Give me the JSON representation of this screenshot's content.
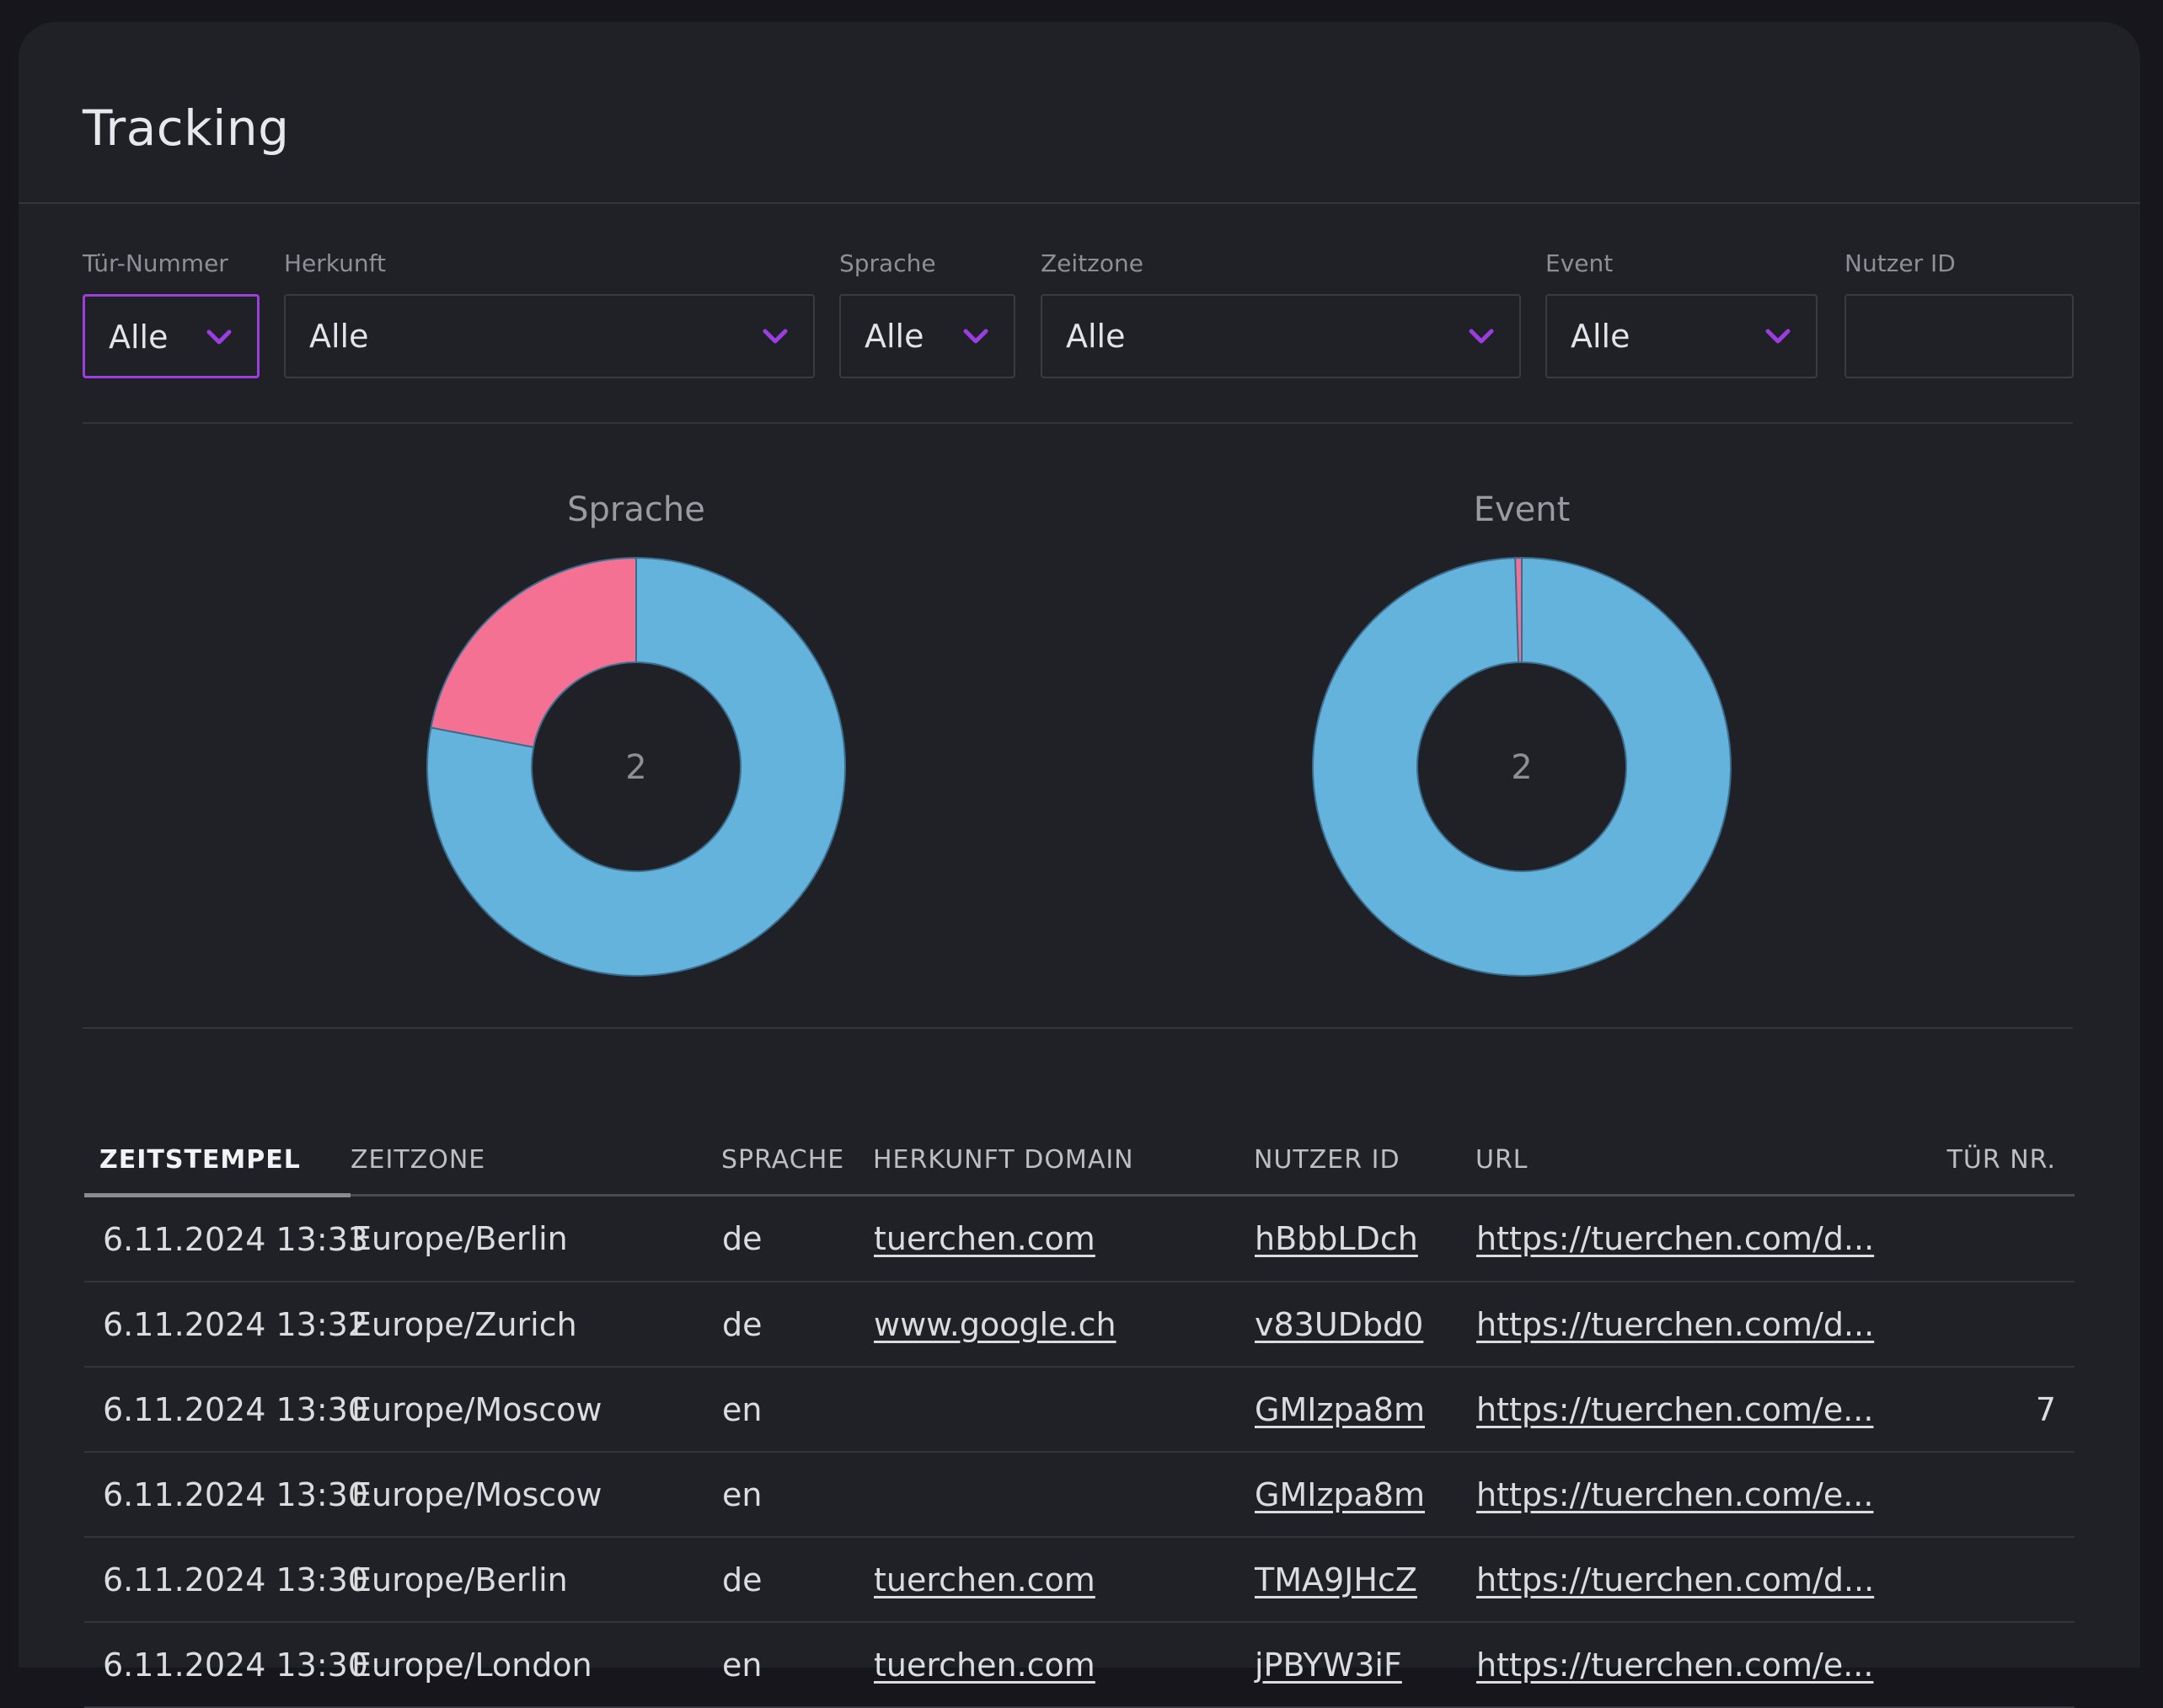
{
  "page": {
    "title": "Tracking"
  },
  "filters": [
    {
      "label": "Tür-Nummer",
      "value": "Alle"
    },
    {
      "label": "Herkunft",
      "value": "Alle"
    },
    {
      "label": "Sprache",
      "value": "Alle"
    },
    {
      "label": "Zeitzone",
      "value": "Alle"
    },
    {
      "label": "Event",
      "value": "Alle"
    },
    {
      "label": "Nutzer ID",
      "value": ""
    }
  ],
  "colors": {
    "accent": "#9a3ee0",
    "pie_blue": "#63b3dc",
    "pie_pink": "#f47194"
  },
  "chart_data": [
    {
      "type": "pie",
      "title": "Sprache",
      "center_label": "2",
      "values": [
        78,
        22
      ],
      "colors": [
        "#63b3dc",
        "#f47194"
      ]
    },
    {
      "type": "pie",
      "title": "Event",
      "center_label": "2",
      "values": [
        99.5,
        0.5
      ],
      "colors": [
        "#63b3dc",
        "#f47194"
      ]
    }
  ],
  "table": {
    "headers": [
      "ZEITSTEMPEL",
      "ZEITZONE",
      "SPRACHE",
      "HERKUNFT DOMAIN",
      "NUTZER ID",
      "URL",
      "TÜR NR."
    ],
    "rows": [
      {
        "timestamp": "6.11.2024 13:33",
        "timezone": "Europe/Berlin",
        "language": "de",
        "domain": "tuerchen.com",
        "user_id": "hBbbLDch",
        "url": "https://tuerchen.com/d...",
        "door": ""
      },
      {
        "timestamp": "6.11.2024 13:32",
        "timezone": "Europe/Zurich",
        "language": "de",
        "domain": "www.google.ch",
        "user_id": "v83UDbd0",
        "url": "https://tuerchen.com/d...",
        "door": ""
      },
      {
        "timestamp": "6.11.2024 13:30",
        "timezone": "Europe/Moscow",
        "language": "en",
        "domain": "",
        "user_id": "GMIzpa8m",
        "url": "https://tuerchen.com/e...",
        "door": "7"
      },
      {
        "timestamp": "6.11.2024 13:30",
        "timezone": "Europe/Moscow",
        "language": "en",
        "domain": "",
        "user_id": "GMIzpa8m",
        "url": "https://tuerchen.com/e...",
        "door": ""
      },
      {
        "timestamp": "6.11.2024 13:30",
        "timezone": "Europe/Berlin",
        "language": "de",
        "domain": "tuerchen.com",
        "user_id": "TMA9JHcZ",
        "url": "https://tuerchen.com/d...",
        "door": ""
      },
      {
        "timestamp": "6.11.2024 13:30",
        "timezone": "Europe/London",
        "language": "en",
        "domain": "tuerchen.com",
        "user_id": "jPBYW3iF",
        "url": "https://tuerchen.com/e...",
        "door": ""
      }
    ]
  }
}
